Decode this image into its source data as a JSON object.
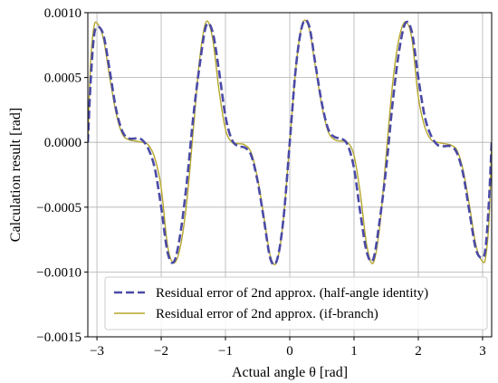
{
  "chart_data": {
    "type": "line",
    "title": "",
    "xlabel": "Actual angle θ [rad]",
    "ylabel": "Calculation result [rad]",
    "xlim": [
      -3.14159,
      3.14159
    ],
    "ylim": [
      -0.0015,
      0.001
    ],
    "x_ticks": [
      -3,
      -2,
      -1,
      0,
      1,
      2,
      3
    ],
    "x_tick_labels": [
      "−3",
      "−2",
      "−1",
      "0",
      "1",
      "2",
      "3"
    ],
    "y_ticks": [
      -0.0015,
      -0.001,
      -0.0005,
      0.0,
      0.0005,
      0.001
    ],
    "y_tick_labels": [
      "−0.0015",
      "−0.0010",
      "−0.0005",
      "0.0000",
      "0.0005",
      "0.0010"
    ],
    "grid": true,
    "legend_position": "lower-right",
    "series": [
      {
        "name": "Residual error of 2nd approx. (half-angle identity)",
        "color": "#4a4aa6",
        "style": "dashed",
        "x": [
          -3.14159,
          -3.1,
          -3.05,
          -3.0,
          -2.9,
          -2.8,
          -2.7,
          -2.6,
          -2.5,
          -2.4,
          -2.3,
          -2.2,
          -2.1,
          -2.0,
          -1.9,
          -1.8,
          -1.7,
          -1.6,
          -1.5,
          -1.4,
          -1.3,
          -1.2,
          -1.1,
          -1.0,
          -0.9,
          -0.8,
          -0.7,
          -0.6,
          -0.5,
          -0.4,
          -0.3,
          -0.2,
          -0.1,
          0.0,
          0.1,
          0.2,
          0.3,
          0.4,
          0.5,
          0.6,
          0.7,
          0.8,
          0.9,
          1.0,
          1.1,
          1.2,
          1.3,
          1.4,
          1.5,
          1.6,
          1.7,
          1.8,
          1.9,
          2.0,
          2.1,
          2.2,
          2.3,
          2.4,
          2.5,
          2.6,
          2.7,
          2.8,
          2.9,
          3.0,
          3.05,
          3.1,
          3.14159
        ],
        "y": [
          0.0,
          0.00045,
          0.0008,
          0.00089,
          0.00083,
          0.00055,
          0.00025,
          8e-05,
          3e-05,
          3e-05,
          2e-05,
          -5e-05,
          -0.0002,
          -0.0005,
          -0.00085,
          -0.00092,
          -0.0007,
          -0.0003,
          0.0002,
          0.0006,
          0.0009,
          0.00085,
          0.00055,
          0.0002,
          2e-05,
          -3e-05,
          -4e-05,
          -0.0001,
          -0.0003,
          -0.0006,
          -0.0009,
          -0.00091,
          -0.0006,
          0.0,
          0.0006,
          0.00091,
          0.0009,
          0.0006,
          0.0003,
          0.0001,
          4e-05,
          3e-05,
          -2e-05,
          -0.0002,
          -0.00055,
          -0.00085,
          -0.0009,
          -0.0006,
          -0.0002,
          0.0003,
          0.0007,
          0.00092,
          0.00085,
          0.0005,
          0.0002,
          5e-05,
          -2e-05,
          -3e-05,
          -3e-05,
          -8e-05,
          -0.00025,
          -0.00055,
          -0.00083,
          -0.00089,
          -0.0008,
          -0.00045,
          0.0
        ]
      },
      {
        "name": "Residual error of 2nd approx. (if-branch)",
        "color": "#b5a62c",
        "style": "solid",
        "x": [
          -3.14159,
          -3.1,
          -3.05,
          -3.0,
          -2.9,
          -2.8,
          -2.7,
          -2.6,
          -2.5,
          -2.4,
          -2.3,
          -2.2,
          -2.1,
          -2.0,
          -1.9,
          -1.8,
          -1.7,
          -1.6,
          -1.5,
          -1.4,
          -1.3,
          -1.2,
          -1.1,
          -1.0,
          -0.9,
          -0.8,
          -0.7,
          -0.6,
          -0.5,
          -0.4,
          -0.3,
          -0.2,
          -0.1,
          0.0,
          0.1,
          0.2,
          0.3,
          0.4,
          0.5,
          0.6,
          0.7,
          0.8,
          0.9,
          1.0,
          1.1,
          1.2,
          1.3,
          1.4,
          1.5,
          1.6,
          1.7,
          1.8,
          1.9,
          2.0,
          2.1,
          2.2,
          2.3,
          2.4,
          2.5,
          2.6,
          2.7,
          2.8,
          2.9,
          3.0,
          3.05,
          3.1,
          3.14159
        ],
        "y": [
          0.0,
          0.0006,
          0.00088,
          0.00092,
          0.0008,
          0.0005,
          0.00022,
          6e-05,
          2e-05,
          1e-05,
          0.0,
          -2e-05,
          -0.00012,
          -0.00035,
          -0.0008,
          -0.00093,
          -0.0008,
          -0.00045,
          0.0001,
          0.00065,
          0.00093,
          0.0008,
          0.0004,
          0.0001,
          0.0,
          -1e-05,
          -2e-05,
          -8e-05,
          -0.00028,
          -0.00058,
          -0.00088,
          -0.00092,
          -0.0006,
          0.0,
          0.0006,
          0.00092,
          0.00088,
          0.00058,
          0.00028,
          8e-05,
          2e-05,
          1e-05,
          0.0,
          -0.0001,
          -0.0004,
          -0.0008,
          -0.00093,
          -0.00065,
          -0.0001,
          0.00045,
          0.0008,
          0.00093,
          0.0008,
          0.00035,
          0.00012,
          2e-05,
          0.0,
          -1e-05,
          -2e-05,
          -6e-05,
          -0.00022,
          -0.0005,
          -0.0008,
          -0.00092,
          -0.00088,
          -0.0006,
          0.0
        ]
      }
    ]
  }
}
